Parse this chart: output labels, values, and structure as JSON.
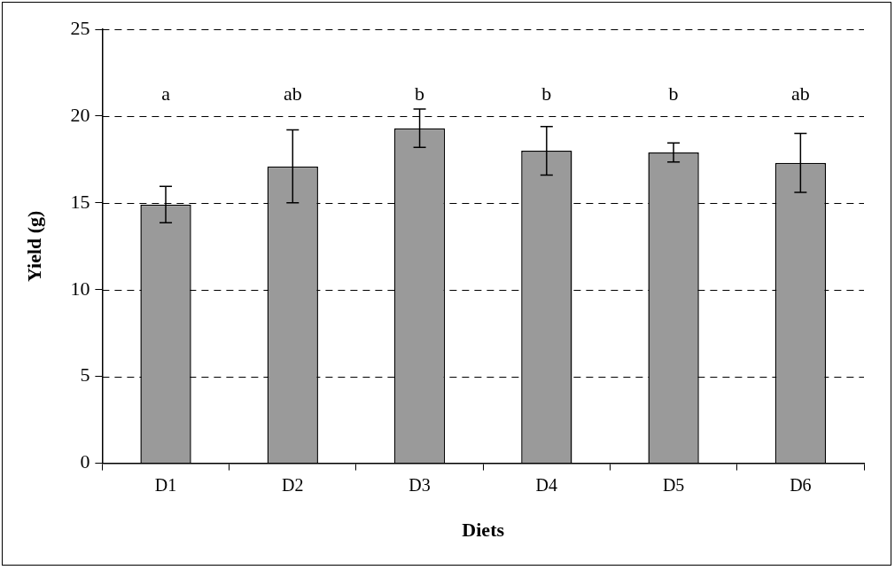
{
  "chart_data": {
    "type": "bar",
    "xlabel": "Diets",
    "ylabel": "Yield (g)",
    "categories": [
      "D1",
      "D2",
      "D3",
      "D4",
      "D5",
      "D6"
    ],
    "values": [
      14.9,
      17.1,
      19.3,
      18.0,
      17.9,
      17.3
    ],
    "errors": [
      1.05,
      2.1,
      1.1,
      1.4,
      0.55,
      1.7
    ],
    "color": "#9a9a9a",
    "ylim": [
      0,
      25
    ],
    "yticks": [
      0,
      5,
      10,
      15,
      20,
      25
    ],
    "grid": "y",
    "legend": false,
    "annotations": [
      "a",
      "ab",
      "b",
      "b",
      "b",
      "ab"
    ]
  }
}
